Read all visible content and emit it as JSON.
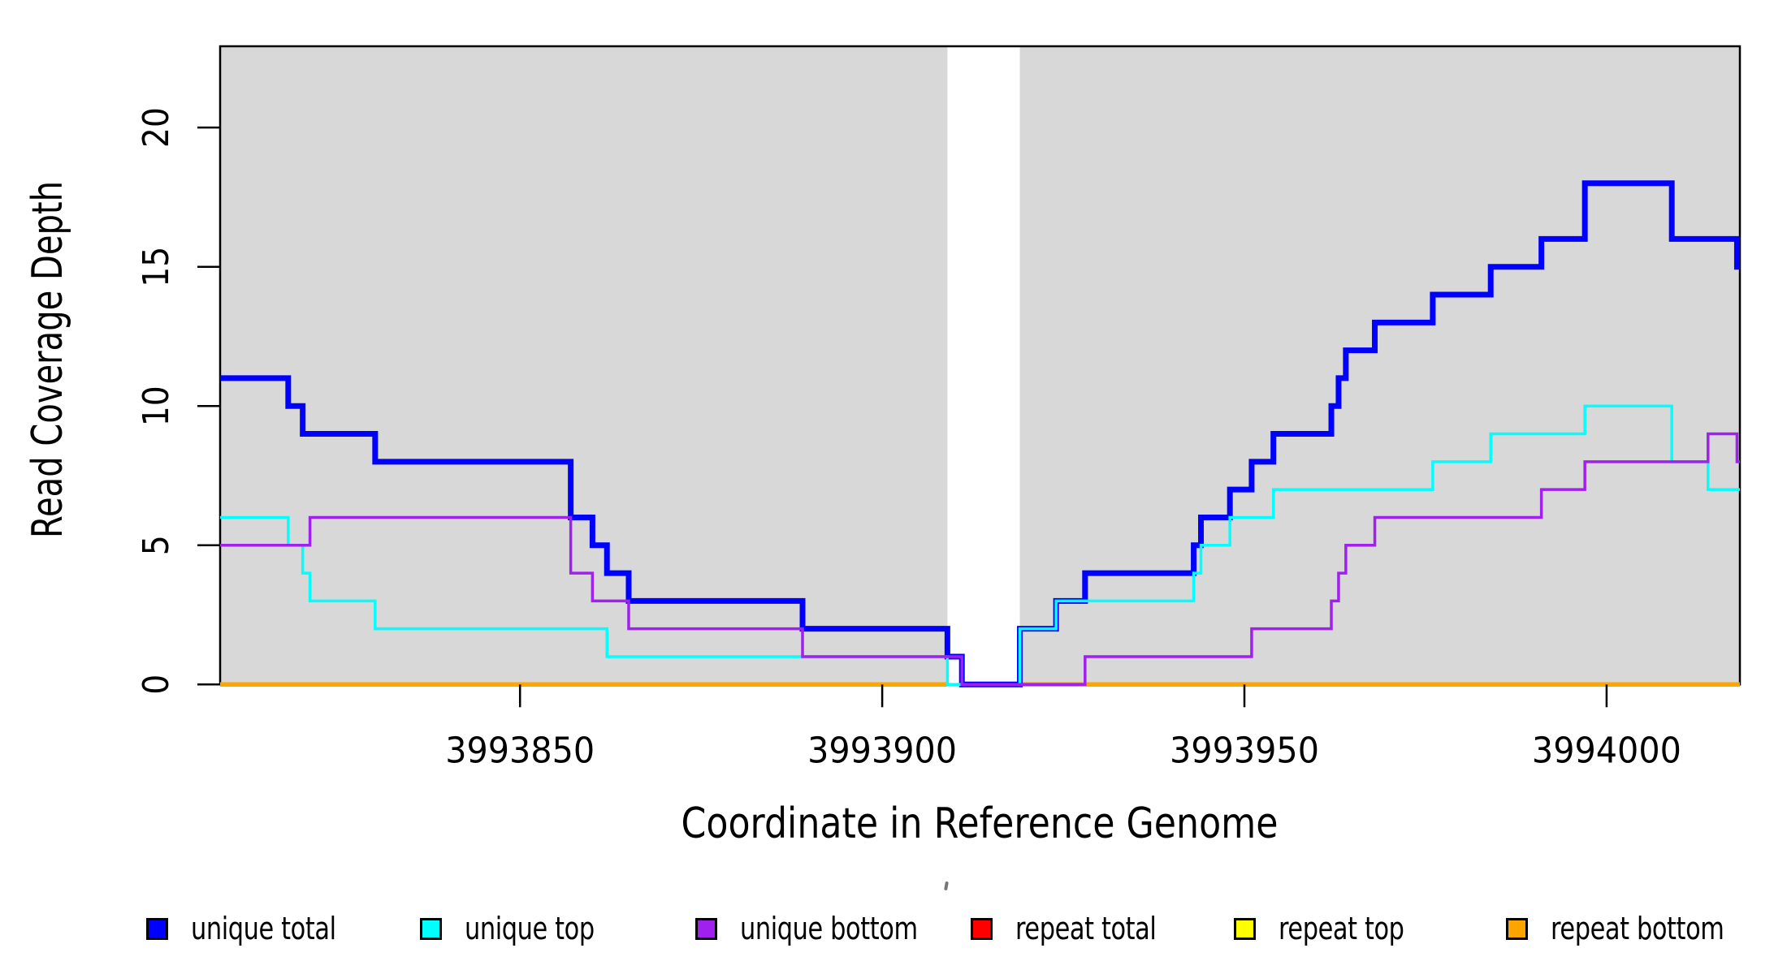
{
  "chart_data": {
    "type": "step-line",
    "title": "",
    "xlabel": "Coordinate in Reference Genome",
    "ylabel": "Read Coverage Depth",
    "xlim": [
      3993808.6,
      3994018.4
    ],
    "ylim": [
      0,
      22.92
    ],
    "xticks": [
      3993850,
      3993900,
      3993950,
      3994000
    ],
    "yticks": [
      0,
      5,
      10,
      15,
      20
    ],
    "grid": false,
    "plot_background_color": "#d8d8d8",
    "gap_region": {
      "x0": 3993909,
      "x1": 3993919,
      "color": "#ffffff"
    },
    "background_bands": [
      {
        "x0": 3993808.6,
        "x1": 3993909,
        "color": "#d8d8d8"
      },
      {
        "x0": 3993919,
        "x1": 3994018.4,
        "color": "#d8d8d8"
      }
    ],
    "series": [
      {
        "name": "repeat total",
        "color": "#ff0000",
        "lwd": 3.5,
        "segments": [
          {
            "x0": 3993808.6,
            "x1": 3993909,
            "value": 0
          },
          {
            "x0": 3993919,
            "x1": 3994018.4,
            "value": 0
          }
        ]
      },
      {
        "name": "repeat top",
        "color": "#ffff00",
        "lwd": 3.5,
        "segments": [
          {
            "x0": 3993808.6,
            "x1": 3993909,
            "value": 0
          },
          {
            "x0": 3993919,
            "x1": 3994018.4,
            "value": 0
          }
        ]
      },
      {
        "name": "repeat bottom",
        "color": "#ffa500",
        "lwd": 5.5,
        "segments": [
          {
            "x0": 3993808.6,
            "x1": 3993909,
            "value": 0
          },
          {
            "x0": 3993919,
            "x1": 3994018.4,
            "value": 0
          }
        ]
      },
      {
        "name": "unique total",
        "color": "#0000ff",
        "lwd": 7,
        "start_value": 11,
        "steps": [
          [
            3993818,
            10
          ],
          [
            3993820,
            9
          ],
          [
            3993830,
            8
          ],
          [
            3993857,
            6
          ],
          [
            3993860,
            5
          ],
          [
            3993862,
            4
          ],
          [
            3993865,
            3
          ],
          [
            3993889,
            2
          ],
          [
            3993909,
            1
          ],
          [
            3993911,
            0
          ],
          [
            3993919,
            2
          ],
          [
            3993924,
            3
          ],
          [
            3993928,
            4
          ],
          [
            3993943,
            5
          ],
          [
            3993944,
            6
          ],
          [
            3993948,
            7
          ],
          [
            3993951,
            8
          ],
          [
            3993954,
            9
          ],
          [
            3993962,
            10
          ],
          [
            3993963,
            11
          ],
          [
            3993964,
            12
          ],
          [
            3993968,
            13
          ],
          [
            3993976,
            14
          ],
          [
            3993984,
            15
          ],
          [
            3993991,
            16
          ],
          [
            3993997,
            18
          ],
          [
            3994009,
            16
          ],
          [
            3994018,
            15
          ]
        ]
      },
      {
        "name": "unique top",
        "color": "#00ffff",
        "lwd": 3.5,
        "start_value": 6,
        "steps": [
          [
            3993818,
            5
          ],
          [
            3993820,
            4
          ],
          [
            3993821,
            3
          ],
          [
            3993830,
            2
          ],
          [
            3993862,
            1
          ],
          [
            3993909,
            0
          ],
          [
            3993919,
            2
          ],
          [
            3993924,
            3
          ],
          [
            3993943,
            4
          ],
          [
            3993944,
            5
          ],
          [
            3993948,
            6
          ],
          [
            3993954,
            7
          ],
          [
            3993976,
            8
          ],
          [
            3993984,
            9
          ],
          [
            3993997,
            10
          ],
          [
            3994009,
            8
          ],
          [
            3994014,
            7
          ]
        ]
      },
      {
        "name": "unique bottom",
        "color": "#a020f0",
        "lwd": 3.5,
        "start_value": 5,
        "steps": [
          [
            3993821,
            6
          ],
          [
            3993857,
            4
          ],
          [
            3993860,
            3
          ],
          [
            3993865,
            2
          ],
          [
            3993889,
            1
          ],
          [
            3993911,
            0
          ],
          [
            3993928,
            1
          ],
          [
            3993951,
            2
          ],
          [
            3993962,
            3
          ],
          [
            3993963,
            4
          ],
          [
            3993964,
            5
          ],
          [
            3993968,
            6
          ],
          [
            3993991,
            7
          ],
          [
            3993997,
            8
          ],
          [
            3994014,
            9
          ],
          [
            3994018,
            8
          ]
        ]
      }
    ],
    "legend": [
      {
        "label": "unique total",
        "color": "#0000ff"
      },
      {
        "label": "unique top",
        "color": "#00ffff"
      },
      {
        "label": "unique bottom",
        "color": "#a020f0"
      },
      {
        "label": "repeat total",
        "color": "#ff0000"
      },
      {
        "label": "repeat top",
        "color": "#ffff00"
      },
      {
        "label": "repeat bottom",
        "color": "#ffa500"
      }
    ],
    "legend_position": "bottom",
    "axis_color": "#000000"
  }
}
